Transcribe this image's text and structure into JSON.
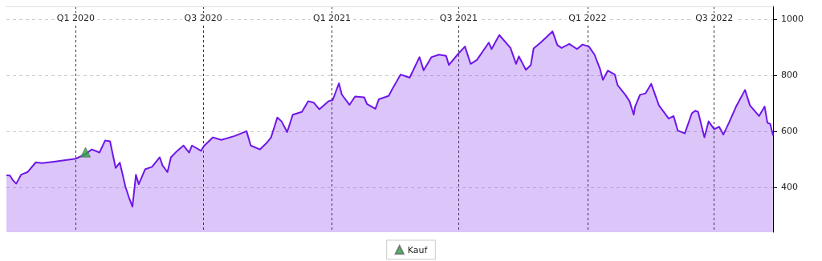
{
  "chart_data": {
    "type": "area",
    "legend": "bottom",
    "grid": true,
    "xlim": [
      "2019-09-24",
      "2022-09-23"
    ],
    "xticks": [
      {
        "value": "2020-01-01",
        "label": "Q1 2020"
      },
      {
        "value": "2020-07-01",
        "label": "Q3 2020"
      },
      {
        "value": "2021-01-01",
        "label": "Q1 2021"
      },
      {
        "value": "2021-07-01",
        "label": "Q3 2021"
      },
      {
        "value": "2022-01-01",
        "label": "Q1 2022"
      },
      {
        "value": "2022-07-01",
        "label": "Q3 2022"
      }
    ],
    "ylim": [
      240,
      1045
    ],
    "yticks": [
      400,
      600,
      800,
      1000
    ],
    "series": [
      {
        "color": "#6e16e8",
        "marker": "none",
        "x": [
          "2019-09-24",
          "2019-09-29",
          "2019-10-03",
          "2019-10-08",
          "2019-10-15",
          "2019-10-24",
          "2019-11-05",
          "2019-11-14",
          "2019-12-03",
          "2020-01-01",
          "2020-01-14",
          "2020-01-24",
          "2020-02-04",
          "2020-02-12",
          "2020-02-19",
          "2020-02-27",
          "2020-03-04",
          "2020-03-12",
          "2020-03-17",
          "2020-03-22",
          "2020-03-27",
          "2020-03-31",
          "2020-04-09",
          "2020-04-19",
          "2020-04-30",
          "2020-05-04",
          "2020-05-11",
          "2020-05-16",
          "2020-05-25",
          "2020-06-03",
          "2020-06-11",
          "2020-06-15",
          "2020-06-28",
          "2020-07-02",
          "2020-07-15",
          "2020-07-27",
          "2020-08-15",
          "2020-09-01",
          "2020-09-07",
          "2020-09-20",
          "2020-09-30",
          "2020-10-06",
          "2020-10-15",
          "2020-10-21",
          "2020-10-29",
          "2020-11-06",
          "2020-11-19",
          "2020-11-28",
          "2020-12-06",
          "2020-12-14",
          "2020-12-27",
          "2021-01-02",
          "2021-01-11",
          "2021-01-15",
          "2021-01-26",
          "2021-02-03",
          "2021-02-16",
          "2021-02-20",
          "2021-03-04",
          "2021-03-09",
          "2021-03-23",
          "2021-03-27",
          "2021-04-09",
          "2021-04-22",
          "2021-05-06",
          "2021-05-12",
          "2021-05-23",
          "2021-06-03",
          "2021-06-13",
          "2021-06-17",
          "2021-07-01",
          "2021-07-10",
          "2021-07-18",
          "2021-07-27",
          "2021-08-13",
          "2021-08-17",
          "2021-08-28",
          "2021-09-13",
          "2021-09-21",
          "2021-09-25",
          "2021-10-05",
          "2021-10-12",
          "2021-10-16",
          "2021-10-26",
          "2021-11-12",
          "2021-11-19",
          "2021-11-25",
          "2021-12-06",
          "2021-12-17",
          "2021-12-25",
          "2022-01-03",
          "2022-01-11",
          "2022-01-19",
          "2022-01-23",
          "2022-01-30",
          "2022-02-09",
          "2022-02-13",
          "2022-02-24",
          "2022-03-02",
          "2022-03-08",
          "2022-03-10",
          "2022-03-17",
          "2022-03-25",
          "2022-04-02",
          "2022-04-13",
          "2022-04-27",
          "2022-05-04",
          "2022-05-10",
          "2022-05-20",
          "2022-05-30",
          "2022-06-04",
          "2022-06-08",
          "2022-06-17",
          "2022-06-23",
          "2022-07-01",
          "2022-07-08",
          "2022-07-14",
          "2022-07-22",
          "2022-08-02",
          "2022-08-14",
          "2022-08-21",
          "2022-09-03",
          "2022-09-11",
          "2022-09-15",
          "2022-09-19",
          "2022-09-23"
        ],
        "values": [
          443,
          442,
          426,
          413,
          445,
          454,
          489,
          486,
          492,
          502,
          517,
          535,
          524,
          567,
          564,
          469,
          488,
          402,
          364,
          331,
          445,
          411,
          464,
          473,
          507,
          478,
          454,
          507,
          530,
          549,
          524,
          549,
          530,
          547,
          578,
          569,
          583,
          600,
          549,
          535,
          559,
          578,
          649,
          635,
          597,
          659,
          669,
          707,
          702,
          678,
          707,
          711,
          771,
          731,
          694,
          724,
          721,
          697,
          680,
          714,
          726,
          745,
          802,
          791,
          864,
          817,
          864,
          873,
          869,
          836,
          878,
          902,
          840,
          854,
          916,
          893,
          943,
          897,
          840,
          867,
          819,
          836,
          895,
          916,
          956,
          907,
          897,
          911,
          893,
          909,
          902,
          873,
          821,
          783,
          816,
          802,
          764,
          730,
          707,
          659,
          688,
          730,
          735,
          769,
          692,
          645,
          654,
          602,
          592,
          664,
          673,
          669,
          578,
          635,
          607,
          616,
          588,
          630,
          692,
          747,
          692,
          654,
          688,
          630,
          626,
          585
        ]
      },
      {
        "type": "scatter",
        "name": "Kauf",
        "color": "#1fa83a",
        "marker": "triangle",
        "x": [
          "2020-01-15"
        ],
        "values": [
          525
        ]
      }
    ]
  }
}
